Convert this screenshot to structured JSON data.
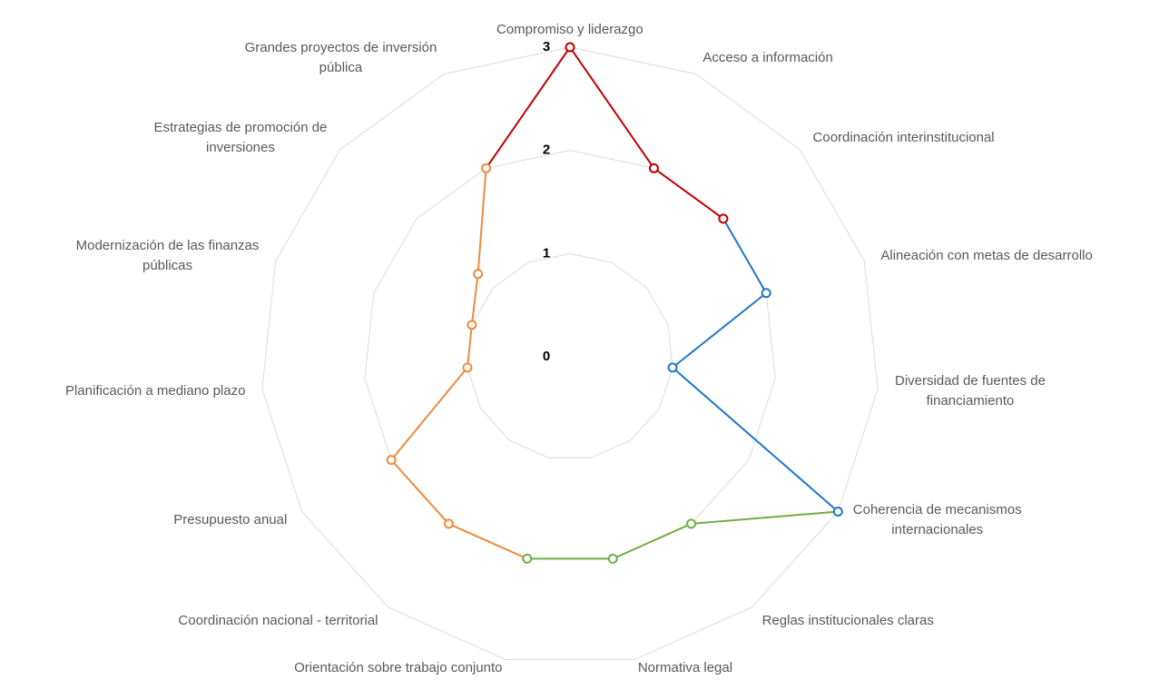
{
  "chart_data": {
    "type": "radar",
    "categories": [
      "Compromiso y liderazgo",
      "Acceso a información",
      "Coordinación interinstitucional",
      "Alineación con metas de desarrollo",
      "Diversidad de fuentes de\nfinanciamiento",
      "Coherencia de mecanismos\ninternacionales",
      "Reglas institucionales claras",
      "Normativa legal",
      "Orientación sobre trabajo conjunto",
      "Coordinación nacional - territorial",
      "Presupuesto anual",
      "Planificación a mediano plazo",
      "Modernización de las finanzas\npúblicas",
      "Estrategias de promoción de\ninversiones",
      "Grandes proyectos de inversión\npública"
    ],
    "series": [
      {
        "values": [
          3,
          2,
          2,
          2,
          1,
          3,
          2,
          2,
          2,
          2,
          2,
          1,
          1,
          1.2,
          2
        ],
        "colors": [
          "#c00000",
          "#c00000",
          "#c00000",
          "#1f77c4",
          "#1f77c4",
          "#1f77c4",
          "#70ad47",
          "#70ad47",
          "#70ad47",
          "#ed8b3c",
          "#ed8b3c",
          "#ed8b3c",
          "#ed8b3c",
          "#ed8b3c",
          "#ed8b3c"
        ]
      }
    ],
    "ylim": [
      0,
      3
    ],
    "yticks": [
      0,
      1,
      2,
      3
    ],
    "grid": true
  }
}
